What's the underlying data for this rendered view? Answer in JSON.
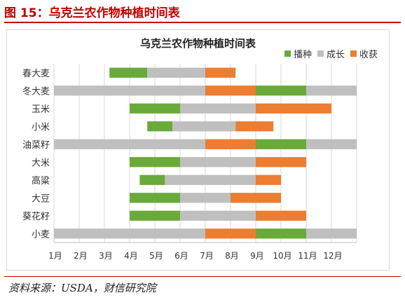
{
  "figure": {
    "title": "图 15：乌克兰农作物种植时间表",
    "source": "资料来源：USDA，财信研究院"
  },
  "colors": {
    "播种": "#6aaa3a",
    "成长": "#bfbfbf",
    "收获": "#ed7d31"
  },
  "chart_data": {
    "type": "bar",
    "orientation": "horizontal",
    "stacked": true,
    "title": "乌克兰农作物种植时间表",
    "legend": [
      "播种",
      "成长",
      "收获"
    ],
    "legend_position": "top-right",
    "x_ticks": [
      "1月",
      "2月",
      "3月",
      "4月",
      "5月",
      "6月",
      "7月",
      "8月",
      "9月",
      "10月",
      "11月",
      "12月"
    ],
    "xlim": [
      1,
      13
    ],
    "grid": true,
    "crops": [
      {
        "name": "春大麦",
        "segments": [
          {
            "stage": "播种",
            "start": 3.2,
            "end": 4.7
          },
          {
            "stage": "成长",
            "start": 4.7,
            "end": 7.0
          },
          {
            "stage": "收获",
            "start": 7.0,
            "end": 8.2
          }
        ]
      },
      {
        "name": "冬大麦",
        "segments": [
          {
            "stage": "成长",
            "start": 1.0,
            "end": 7.0
          },
          {
            "stage": "收获",
            "start": 7.0,
            "end": 9.0
          },
          {
            "stage": "播种",
            "start": 9.0,
            "end": 11.0
          },
          {
            "stage": "成长",
            "start": 11.0,
            "end": 13.0
          }
        ]
      },
      {
        "name": "玉米",
        "segments": [
          {
            "stage": "播种",
            "start": 4.0,
            "end": 6.0
          },
          {
            "stage": "成长",
            "start": 6.0,
            "end": 9.0
          },
          {
            "stage": "收获",
            "start": 9.0,
            "end": 12.0
          }
        ]
      },
      {
        "name": "小米",
        "segments": [
          {
            "stage": "播种",
            "start": 4.7,
            "end": 5.7
          },
          {
            "stage": "成长",
            "start": 5.7,
            "end": 8.2
          },
          {
            "stage": "收获",
            "start": 8.2,
            "end": 9.7
          }
        ]
      },
      {
        "name": "油菜籽",
        "segments": [
          {
            "stage": "成长",
            "start": 1.0,
            "end": 7.0
          },
          {
            "stage": "收获",
            "start": 7.0,
            "end": 9.0
          },
          {
            "stage": "播种",
            "start": 9.0,
            "end": 11.0
          },
          {
            "stage": "成长",
            "start": 11.0,
            "end": 13.0
          }
        ]
      },
      {
        "name": "大米",
        "segments": [
          {
            "stage": "播种",
            "start": 4.0,
            "end": 6.0
          },
          {
            "stage": "成长",
            "start": 6.0,
            "end": 9.0
          },
          {
            "stage": "收获",
            "start": 9.0,
            "end": 11.0
          }
        ]
      },
      {
        "name": "高粱",
        "segments": [
          {
            "stage": "播种",
            "start": 4.4,
            "end": 5.4
          },
          {
            "stage": "成长",
            "start": 5.4,
            "end": 9.0
          },
          {
            "stage": "收获",
            "start": 9.0,
            "end": 10.0
          }
        ]
      },
      {
        "name": "大豆",
        "segments": [
          {
            "stage": "播种",
            "start": 4.0,
            "end": 6.0
          },
          {
            "stage": "成长",
            "start": 6.0,
            "end": 8.0
          },
          {
            "stage": "收获",
            "start": 8.0,
            "end": 10.0
          }
        ]
      },
      {
        "name": "葵花籽",
        "segments": [
          {
            "stage": "播种",
            "start": 4.0,
            "end": 6.0
          },
          {
            "stage": "成长",
            "start": 6.0,
            "end": 9.0
          },
          {
            "stage": "收获",
            "start": 9.0,
            "end": 11.0
          }
        ]
      },
      {
        "name": "小麦",
        "segments": [
          {
            "stage": "成长",
            "start": 1.0,
            "end": 7.0
          },
          {
            "stage": "收获",
            "start": 7.0,
            "end": 9.0
          },
          {
            "stage": "播种",
            "start": 9.0,
            "end": 11.0
          },
          {
            "stage": "成长",
            "start": 11.0,
            "end": 13.0
          }
        ]
      }
    ]
  }
}
